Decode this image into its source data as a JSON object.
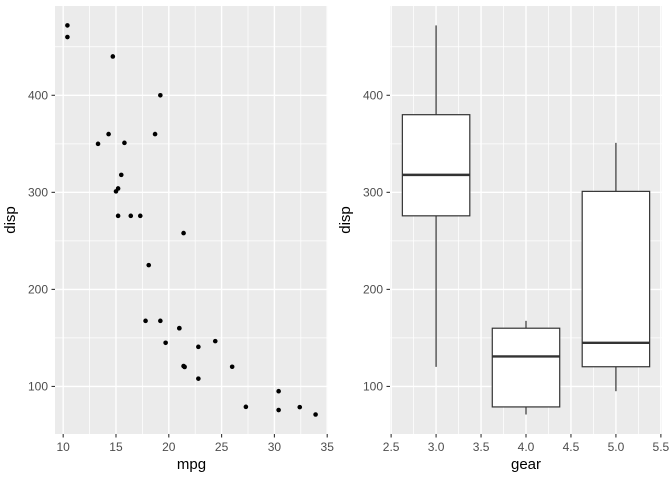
{
  "figure": {
    "background": "#FFFFFF"
  },
  "theme": {
    "panel_bg": "#EBEBEB",
    "grid_color": "#FFFFFF",
    "grid_major_width": 1.4,
    "grid_minor_width": 0.75,
    "tick_color": "#333333",
    "tick_label_color": "#4D4D4D",
    "axis_title_color": "#000000",
    "point_color": "#000000",
    "box_stroke": "#333333",
    "box_fill": "#FFFFFF"
  },
  "chart_data": [
    {
      "type": "scatter",
      "title": "",
      "xlabel": "mpg",
      "ylabel": "disp",
      "x_domain": [
        9.225,
        35.075
      ],
      "y_domain": [
        51,
        492
      ],
      "x_ticks": {
        "major": [
          10,
          15,
          20,
          25,
          30,
          35
        ],
        "labels": [
          "10",
          "15",
          "20",
          "25",
          "30",
          "35"
        ],
        "minor": [
          12.5,
          17.5,
          22.5,
          27.5,
          32.5
        ]
      },
      "y_ticks": {
        "major": [
          100,
          200,
          300,
          400
        ],
        "labels": [
          "100",
          "200",
          "300",
          "400"
        ],
        "minor": [
          150,
          250,
          350,
          450
        ]
      },
      "points": [
        [
          21.0,
          160
        ],
        [
          21.0,
          160
        ],
        [
          22.8,
          108
        ],
        [
          21.4,
          258
        ],
        [
          18.7,
          360
        ],
        [
          18.1,
          225
        ],
        [
          14.3,
          360
        ],
        [
          24.4,
          146.7
        ],
        [
          22.8,
          140.8
        ],
        [
          19.2,
          167.6
        ],
        [
          17.8,
          167.6
        ],
        [
          16.4,
          275.8
        ],
        [
          17.3,
          275.8
        ],
        [
          15.2,
          275.8
        ],
        [
          10.4,
          472
        ],
        [
          10.4,
          460
        ],
        [
          14.7,
          440
        ],
        [
          32.4,
          78.7
        ],
        [
          30.4,
          75.7
        ],
        [
          33.9,
          71.1
        ],
        [
          21.5,
          120.1
        ],
        [
          15.5,
          318
        ],
        [
          15.2,
          304
        ],
        [
          13.3,
          350
        ],
        [
          19.2,
          400
        ],
        [
          27.3,
          79
        ],
        [
          26.0,
          120.3
        ],
        [
          30.4,
          95.1
        ],
        [
          15.8,
          351
        ],
        [
          19.7,
          145
        ],
        [
          15.0,
          301
        ],
        [
          21.4,
          121
        ]
      ]
    },
    {
      "type": "boxplot",
      "title": "",
      "xlabel": "gear",
      "ylabel": "disp",
      "x_domain": [
        2.4875,
        5.5125
      ],
      "y_domain": [
        51,
        492
      ],
      "box_half_width": 0.375,
      "x_ticks": {
        "major": [
          2.5,
          3.0,
          3.5,
          4.0,
          4.5,
          5.0,
          5.5
        ],
        "labels": [
          "2.5",
          "3.0",
          "3.5",
          "4.0",
          "4.5",
          "5.0",
          "5.5"
        ],
        "minor": [
          2.75,
          3.25,
          3.75,
          4.25,
          4.75,
          5.25
        ]
      },
      "y_ticks": {
        "major": [
          100,
          200,
          300,
          400
        ],
        "labels": [
          "100",
          "200",
          "300",
          "400"
        ],
        "minor": [
          150,
          250,
          350,
          450
        ]
      },
      "boxes": [
        {
          "group": "3",
          "x": 3,
          "whisker_low": 120.1,
          "q1": 275.8,
          "median": 318,
          "q3": 380,
          "whisker_high": 472
        },
        {
          "group": "4",
          "x": 4,
          "whisker_low": 71.1,
          "q1": 78.9,
          "median": 130.9,
          "q3": 160,
          "whisker_high": 167.6
        },
        {
          "group": "5",
          "x": 5,
          "whisker_low": 95.1,
          "q1": 120.3,
          "median": 145,
          "q3": 301,
          "whisker_high": 351
        }
      ]
    }
  ]
}
